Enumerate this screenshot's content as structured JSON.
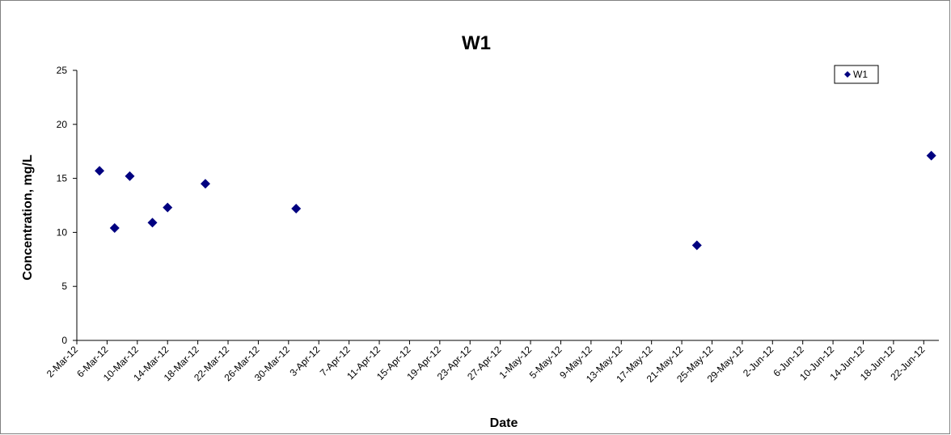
{
  "chart_data": {
    "type": "scatter",
    "title": "W1",
    "xlabel": "Date",
    "ylabel": "Concentration, mg/L",
    "ylim": [
      0,
      25
    ],
    "y_ticks": [
      0,
      5,
      10,
      15,
      20,
      25
    ],
    "xlim": [
      "2012-03-02",
      "2012-06-24"
    ],
    "x_tick_labels": [
      "2-Mar-12",
      "6-Mar-12",
      "10-Mar-12",
      "14-Mar-12",
      "18-Mar-12",
      "22-Mar-12",
      "26-Mar-12",
      "30-Mar-12",
      "3-Apr-12",
      "7-Apr-12",
      "11-Apr-12",
      "15-Apr-12",
      "19-Apr-12",
      "23-Apr-12",
      "27-Apr-12",
      "1-May-12",
      "5-May-12",
      "9-May-12",
      "13-May-12",
      "17-May-12",
      "21-May-12",
      "25-May-12",
      "29-May-12",
      "2-Jun-12",
      "6-Jun-12",
      "10-Jun-12",
      "14-Jun-12",
      "18-Jun-12",
      "22-Jun-12"
    ],
    "grid": false,
    "legend_position": "top-right",
    "series": [
      {
        "name": "W1",
        "color": "#000080",
        "marker": "diamond",
        "x": [
          "2012-03-05",
          "2012-03-07",
          "2012-03-09",
          "2012-03-12",
          "2012-03-14",
          "2012-03-19",
          "2012-03-31",
          "2012-05-23",
          "2012-06-23"
        ],
        "y": [
          15.7,
          10.4,
          15.2,
          10.9,
          12.3,
          14.5,
          12.2,
          8.8,
          17.1
        ]
      }
    ]
  }
}
